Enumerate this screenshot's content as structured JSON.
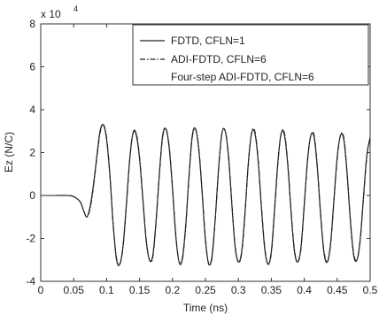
{
  "chart_data": {
    "type": "line",
    "title": "",
    "xlabel": "Time (ns)",
    "ylabel": "Ez (N/C)",
    "y_multiplier": "x 10",
    "y_multiplier_exponent": "4",
    "xlim": [
      0,
      0.5
    ],
    "ylim": [
      -4,
      8
    ],
    "xticks": [
      0,
      0.05,
      0.1,
      0.15,
      0.2,
      0.25,
      0.3,
      0.35,
      0.4,
      0.45,
      0.5
    ],
    "xtick_labels": [
      "0",
      "0.05",
      "0.1",
      "0.15",
      "0.2",
      "0.25",
      "0.3",
      "0.35",
      "0.4",
      "0.45",
      "0.5"
    ],
    "yticks": [
      -4,
      -2,
      0,
      2,
      4,
      6,
      8
    ],
    "ytick_labels": [
      "-4",
      "-2",
      "0",
      "2",
      "4",
      "6",
      "8"
    ],
    "grid": false,
    "legend_position": "top-right",
    "series": [
      {
        "name": "FDTD, CFLN=1",
        "color": "#222222",
        "linestyle": "solid",
        "x": [
          0,
          0.02,
          0.04,
          0.05,
          0.06,
          0.065,
          0.07,
          0.075,
          0.08,
          0.085,
          0.09,
          0.095,
          0.1,
          0.105,
          0.11,
          0.115,
          0.12,
          0.125,
          0.13,
          0.135,
          0.14,
          0.145,
          0.15,
          0.155,
          0.16,
          0.165,
          0.17,
          0.175,
          0.18,
          0.185,
          0.19,
          0.195,
          0.2,
          0.205,
          0.21,
          0.215,
          0.22,
          0.225,
          0.23,
          0.235,
          0.24,
          0.245,
          0.25,
          0.255,
          0.26,
          0.265,
          0.27,
          0.275,
          0.28,
          0.285,
          0.29,
          0.295,
          0.3,
          0.305,
          0.31,
          0.315,
          0.32,
          0.325,
          0.33,
          0.335,
          0.34,
          0.345,
          0.35,
          0.355,
          0.36,
          0.365,
          0.37,
          0.375,
          0.38,
          0.385,
          0.39,
          0.395,
          0.4,
          0.405,
          0.41,
          0.415,
          0.42,
          0.425,
          0.43,
          0.435,
          0.44,
          0.445,
          0.45,
          0.455,
          0.46,
          0.465,
          0.47,
          0.475,
          0.48,
          0.485,
          0.49,
          0.495,
          0.5
        ],
        "y": [
          0,
          0,
          0,
          -0.05,
          -0.3,
          -0.7,
          -1.0,
          -0.5,
          0.5,
          1.8,
          3.0,
          3.3,
          2.6,
          0.9,
          -1.4,
          -3.0,
          -3.2,
          -2.3,
          -0.4,
          1.7,
          2.9,
          2.8,
          1.7,
          -0.2,
          -2.1,
          -3.0,
          -2.8,
          -1.2,
          1.0,
          2.8,
          3.1,
          2.2,
          0.3,
          -1.9,
          -3.1,
          -2.9,
          -1.4,
          0.9,
          2.8,
          3.1,
          2.1,
          0.1,
          -2.1,
          -3.2,
          -2.8,
          -1.0,
          1.3,
          2.9,
          3.0,
          1.8,
          -0.4,
          -2.4,
          -3.1,
          -2.6,
          -0.8,
          1.5,
          2.9,
          2.9,
          1.6,
          -0.6,
          -2.5,
          -3.2,
          -2.6,
          -0.6,
          1.6,
          2.9,
          2.8,
          1.4,
          -0.8,
          -2.6,
          -3.1,
          -2.4,
          -0.4,
          1.7,
          2.8,
          2.7,
          1.2,
          -1.0,
          -2.7,
          -3.1,
          -2.2,
          -0.2,
          1.8,
          2.8,
          2.6,
          1.0,
          -1.2,
          -2.8,
          -3.0,
          -2.0,
          0.0,
          1.9,
          2.7
        ]
      },
      {
        "name": "ADI-FDTD, CFLN=6",
        "color": "#222222",
        "linestyle": "dashdot",
        "x": [
          0,
          0.02,
          0.04,
          0.05,
          0.06,
          0.065,
          0.07,
          0.075,
          0.08,
          0.085,
          0.09,
          0.095,
          0.1,
          0.105,
          0.11,
          0.115,
          0.12,
          0.125,
          0.13,
          0.135,
          0.14,
          0.145,
          0.15,
          0.155,
          0.16,
          0.165,
          0.17,
          0.175,
          0.18,
          0.185,
          0.19,
          0.195,
          0.2,
          0.205,
          0.21,
          0.215,
          0.22,
          0.225,
          0.23,
          0.235,
          0.24,
          0.245,
          0.25,
          0.255,
          0.26,
          0.265,
          0.27,
          0.275,
          0.28,
          0.285,
          0.29,
          0.295,
          0.3,
          0.305,
          0.31,
          0.315,
          0.32,
          0.325,
          0.33,
          0.335,
          0.34,
          0.345,
          0.35,
          0.355,
          0.36,
          0.365,
          0.37,
          0.375,
          0.38,
          0.385,
          0.39,
          0.395,
          0.4,
          0.405,
          0.41,
          0.415,
          0.42,
          0.425,
          0.43,
          0.435,
          0.44,
          0.445,
          0.45,
          0.455,
          0.46,
          0.465,
          0.47,
          0.475,
          0.48,
          0.485,
          0.49,
          0.495,
          0.5
        ],
        "y": [
          0,
          0,
          0,
          -0.05,
          -0.3,
          -0.7,
          -1.0,
          -0.6,
          0.4,
          1.7,
          2.9,
          3.3,
          2.7,
          1.0,
          -1.3,
          -2.9,
          -3.2,
          -2.4,
          -0.5,
          1.6,
          2.9,
          2.9,
          1.8,
          -0.1,
          -2.0,
          -3.0,
          -2.9,
          -1.3,
          0.9,
          2.7,
          3.1,
          2.3,
          0.4,
          -1.8,
          -3.1,
          -3.0,
          -1.5,
          0.8,
          2.7,
          3.1,
          2.2,
          0.2,
          -2.0,
          -3.2,
          -2.9,
          -1.1,
          1.2,
          2.9,
          3.0,
          1.9,
          -0.3,
          -2.3,
          -3.1,
          -2.7,
          -0.9,
          1.4,
          2.9,
          3.0,
          1.7,
          -0.5,
          -2.4,
          -3.2,
          -2.7,
          -0.7,
          1.5,
          2.9,
          2.9,
          1.5,
          -0.7,
          -2.5,
          -3.1,
          -2.5,
          -0.5,
          1.6,
          2.8,
          2.8,
          1.3,
          -0.9,
          -2.6,
          -3.1,
          -2.3,
          -0.3,
          1.7,
          2.8,
          2.7,
          1.1,
          -1.1,
          -2.7,
          -3.0,
          -2.1,
          -0.1,
          1.8,
          2.7
        ]
      },
      {
        "name": "Four-step ADI-FDTD, CFLN=6",
        "color": "#222222",
        "linestyle": "dotted",
        "x": [
          0,
          0.02,
          0.04,
          0.05,
          0.06,
          0.065,
          0.07,
          0.075,
          0.08,
          0.085,
          0.09,
          0.095,
          0.1,
          0.105,
          0.11,
          0.115,
          0.12,
          0.125,
          0.13,
          0.135,
          0.14,
          0.145,
          0.15,
          0.155,
          0.16,
          0.165,
          0.17,
          0.175,
          0.18,
          0.185,
          0.19,
          0.195,
          0.2,
          0.205,
          0.21,
          0.215,
          0.22,
          0.225,
          0.23,
          0.235,
          0.24,
          0.245,
          0.25,
          0.255,
          0.26,
          0.265,
          0.27,
          0.275,
          0.28,
          0.285,
          0.29,
          0.295,
          0.3,
          0.305,
          0.31,
          0.315,
          0.32,
          0.325,
          0.33,
          0.335,
          0.34,
          0.345,
          0.35,
          0.355,
          0.36,
          0.365,
          0.37,
          0.375,
          0.38,
          0.385,
          0.39,
          0.395,
          0.4,
          0.405,
          0.41,
          0.415,
          0.42,
          0.425,
          0.43,
          0.435,
          0.44,
          0.445,
          0.45,
          0.455,
          0.46,
          0.465,
          0.47,
          0.475,
          0.48,
          0.485,
          0.49,
          0.495,
          0.5
        ],
        "y": [
          0,
          0,
          0,
          -0.05,
          -0.3,
          -0.7,
          -1.0,
          -0.55,
          0.45,
          1.75,
          2.95,
          3.3,
          2.65,
          0.95,
          -1.35,
          -2.95,
          -3.2,
          -2.35,
          -0.45,
          1.65,
          2.9,
          2.85,
          1.75,
          -0.15,
          -2.05,
          -3.0,
          -2.85,
          -1.25,
          0.95,
          2.75,
          3.1,
          2.25,
          0.35,
          -1.85,
          -3.1,
          -2.95,
          -1.45,
          0.85,
          2.75,
          3.1,
          2.15,
          0.15,
          -2.05,
          -3.2,
          -2.85,
          -1.05,
          1.25,
          2.9,
          3.0,
          1.85,
          -0.35,
          -2.35,
          -3.1,
          -2.65,
          -0.85,
          1.45,
          2.9,
          2.95,
          1.65,
          -0.55,
          -2.45,
          -3.2,
          -2.65,
          -0.65,
          1.55,
          2.9,
          2.85,
          1.45,
          -0.75,
          -2.55,
          -3.1,
          -2.45,
          -0.45,
          1.65,
          2.8,
          2.75,
          1.25,
          -0.95,
          -2.65,
          -3.1,
          -2.25,
          -0.25,
          1.75,
          2.8,
          2.65,
          1.05,
          -1.15,
          -2.75,
          -3.0,
          -2.05,
          -0.05,
          1.85,
          2.7
        ]
      }
    ]
  }
}
